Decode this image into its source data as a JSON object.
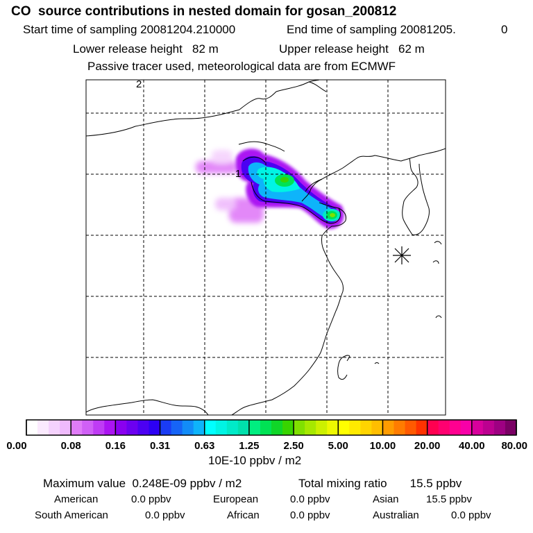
{
  "title": "CO  source contributions in nested domain for gosan_200812",
  "header": {
    "start_label": "Start time of sampling 20081204.210000",
    "end_label": "End time of sampling 20081205.",
    "end_suffix": "0",
    "lower_height": "Lower release height   82 m",
    "upper_height": "Upper release height   62 m",
    "tracer_note": "Passive tracer used, meteorological data are from ECMWF"
  },
  "map": {
    "grid_labels": [
      "2",
      "1"
    ],
    "station_marker": "star-marker"
  },
  "chart_data": {
    "type": "heatmap",
    "colorbar": {
      "ticks": [
        "0.00",
        "0.08",
        "0.16",
        "0.31",
        "0.63",
        "1.25",
        "2.50",
        "5.00",
        "10.00",
        "20.00",
        "40.00",
        "80.00"
      ],
      "unit": "10E-10 ppbv / m2",
      "colors": [
        "#ffffff",
        "#fbeafe",
        "#f5d2fd",
        "#efbafc",
        "#e07cf8",
        "#d060f6",
        "#bf3cf4",
        "#ab14f2",
        "#8a00f0",
        "#6c00f0",
        "#4c00f2",
        "#2c00f4",
        "#1a3cf4",
        "#1664f6",
        "#128cf8",
        "#0eb4fa",
        "#00ffff",
        "#00f4e4",
        "#00eac8",
        "#00e0ac",
        "#00ee80",
        "#00e254",
        "#10d628",
        "#38d400",
        "#80e000",
        "#a6e800",
        "#ccf000",
        "#eef800",
        "#ffff00",
        "#ffea00",
        "#ffd400",
        "#ffbe00",
        "#ff9c00",
        "#ff7c00",
        "#ff5a00",
        "#ff3200",
        "#ff0050",
        "#ff0070",
        "#ff0090",
        "#f800a8",
        "#d8009c",
        "#bc0090",
        "#9e0082",
        "#7a0064"
      ]
    }
  },
  "stats": {
    "max_value": "Maximum value  0.248E-09 ppbv / m2",
    "total_mixing": "Total mixing ratio       15.5 ppbv",
    "american_label": "American",
    "american_value": "0.0 ppbv",
    "european_label": "European",
    "european_value": "0.0 ppbv",
    "asian_label": "Asian",
    "asian_value": "15.5 ppbv",
    "south_american_label": "South American",
    "south_american_value": "0.0 ppbv",
    "african_label": "African",
    "african_value": "0.0 ppbv",
    "australian_label": "Australian",
    "australian_value": "0.0 ppbv"
  }
}
